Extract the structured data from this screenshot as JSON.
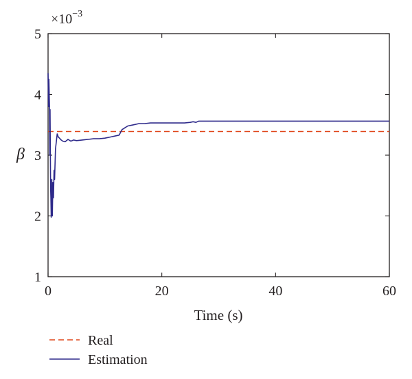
{
  "chart_data": {
    "type": "line",
    "xlabel": "Time (s)",
    "ylabel": "β",
    "y_multiplier_base": "×10",
    "y_multiplier_exp": "−3",
    "xlim": [
      0,
      60
    ],
    "ylim": [
      1,
      5
    ],
    "xticks": [
      0,
      20,
      40,
      60
    ],
    "yticks": [
      1,
      2,
      3,
      4,
      5
    ],
    "grid": false,
    "legend_position": "bottom-left, below axes",
    "series": [
      {
        "name": "Real",
        "color": "#e0461a",
        "style": "dashed",
        "x": [
          0,
          60
        ],
        "y": [
          3.39,
          3.39
        ]
      },
      {
        "name": "Estimation",
        "color": "#2e2a8a",
        "style": "solid",
        "x": [
          0,
          0.08,
          0.15,
          0.25,
          0.3,
          0.35,
          0.45,
          0.5,
          0.55,
          0.65,
          0.75,
          0.85,
          0.95,
          1.05,
          1.15,
          1.3,
          1.45,
          1.6,
          1.8,
          2.0,
          2.3,
          2.6,
          3.0,
          3.5,
          4.0,
          4.5,
          5.0,
          6.0,
          7.0,
          8.0,
          9.0,
          10.0,
          11.0,
          12.0,
          12.5,
          13.0,
          13.5,
          14.0,
          15.0,
          16.0,
          17.0,
          18.0,
          19.0,
          20.0,
          22.0,
          24.0,
          25.0,
          25.5,
          26.0,
          26.5,
          27.0,
          30.0,
          40.0,
          50.0,
          60.0
        ],
        "y": [
          4.35,
          3.8,
          4.25,
          3.8,
          3.0,
          3.75,
          2.45,
          2.3,
          1.98,
          2.6,
          2.0,
          2.55,
          2.3,
          2.75,
          2.6,
          3.1,
          3.22,
          3.35,
          3.3,
          3.28,
          3.25,
          3.23,
          3.22,
          3.26,
          3.23,
          3.25,
          3.24,
          3.25,
          3.26,
          3.27,
          3.27,
          3.28,
          3.3,
          3.32,
          3.33,
          3.42,
          3.45,
          3.48,
          3.5,
          3.52,
          3.52,
          3.53,
          3.53,
          3.53,
          3.53,
          3.53,
          3.54,
          3.55,
          3.54,
          3.56,
          3.56,
          3.56,
          3.56,
          3.56,
          3.56
        ]
      }
    ]
  }
}
